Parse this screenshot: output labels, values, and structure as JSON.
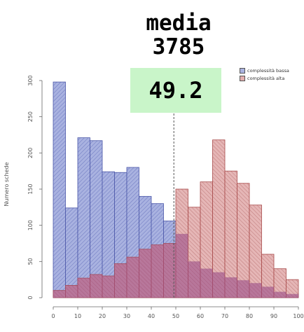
{
  "title": {
    "line1": "media",
    "line2": "3785",
    "highlight": "49.2"
  },
  "chart_data": {
    "type": "bar",
    "title": "media 3785",
    "xlabel": "",
    "ylabel": "Numero schede",
    "xlim": [
      0,
      100
    ],
    "ylim": [
      0,
      300
    ],
    "bin_width": 5,
    "bin_starts": [
      0,
      5,
      10,
      15,
      20,
      25,
      30,
      35,
      40,
      45,
      50,
      55,
      60,
      65,
      70,
      75,
      80,
      85,
      90,
      95
    ],
    "x_ticks": [
      0,
      10,
      20,
      30,
      40,
      50,
      60,
      70,
      80,
      90,
      100
    ],
    "y_ticks": [
      0,
      50,
      100,
      150,
      200,
      250,
      300
    ],
    "mean_line_x": 49.2,
    "grid": false,
    "legend_position": "top-right",
    "series": [
      {
        "name": "complessità bassa",
        "color": "#9aa6d8",
        "values": [
          298,
          124,
          221,
          217,
          174,
          173,
          180,
          140,
          130,
          106,
          88,
          50,
          40,
          35,
          28,
          24,
          20,
          15,
          8,
          5
        ]
      },
      {
        "name": "complessità alta",
        "color": "#d9a0a0",
        "values": [
          10,
          17,
          27,
          32,
          30,
          47,
          56,
          67,
          73,
          75,
          150,
          125,
          160,
          218,
          175,
          158,
          128,
          60,
          40,
          25
        ]
      }
    ]
  }
}
